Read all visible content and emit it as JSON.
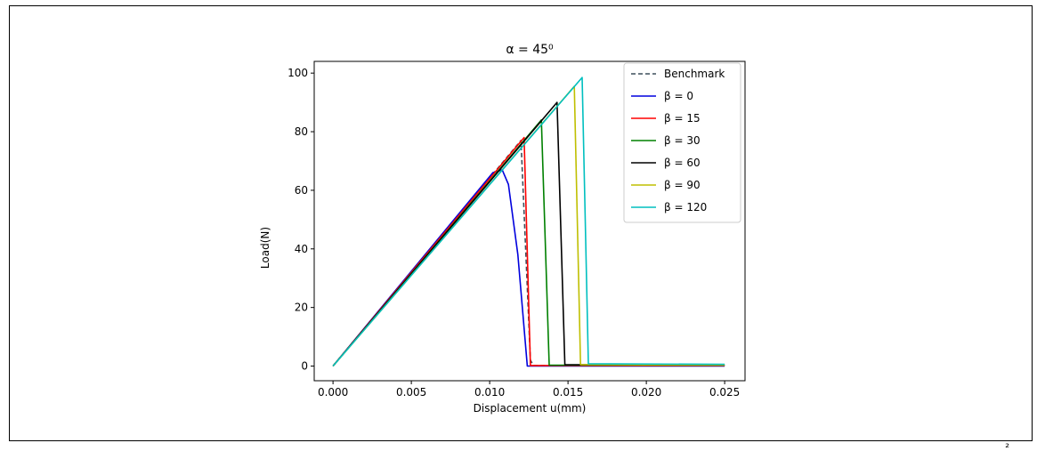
{
  "chart_data": {
    "type": "line",
    "title": "α = 45⁰",
    "xlabel": "Displacement u(mm)",
    "ylabel": "Load(N)",
    "xlim": [
      -0.0012,
      0.0263
    ],
    "ylim": [
      -5,
      104
    ],
    "x_ticks": [
      "0.000",
      "0.005",
      "0.010",
      "0.015",
      "0.020",
      "0.025"
    ],
    "y_ticks": [
      "0",
      "20",
      "40",
      "60",
      "80",
      "100"
    ],
    "grid": false,
    "legend_position": "top-right",
    "series": [
      {
        "name": "Benchmark",
        "color": "#3d4f5c",
        "dash": true,
        "x": [
          0,
          0.012,
          0.0126,
          0.0128,
          0.025
        ],
        "y": [
          0,
          77,
          2,
          0.2,
          0.2
        ]
      },
      {
        "name": "β = 0",
        "color": "#0000dd",
        "dash": false,
        "x": [
          0,
          0.0102,
          0.0108,
          0.0112,
          0.0118,
          0.0124,
          0.025
        ],
        "y": [
          0,
          66,
          67,
          62,
          38,
          0,
          0
        ]
      },
      {
        "name": "β = 15",
        "color": "#ff0000",
        "dash": false,
        "x": [
          0,
          0.0122,
          0.0126,
          0.025
        ],
        "y": [
          0,
          78,
          0.2,
          0.2
        ]
      },
      {
        "name": "β = 30",
        "color": "#008000",
        "dash": false,
        "x": [
          0,
          0.0133,
          0.0138,
          0.025
        ],
        "y": [
          0,
          84,
          0.3,
          0.3
        ]
      },
      {
        "name": "β = 60",
        "color": "#000000",
        "dash": false,
        "x": [
          0,
          0.0143,
          0.0148,
          0.025
        ],
        "y": [
          0,
          90,
          0.5,
          0.3
        ]
      },
      {
        "name": "β = 90",
        "color": "#bfbf00",
        "dash": false,
        "x": [
          0,
          0.0154,
          0.0158,
          0.025
        ],
        "y": [
          0,
          95.5,
          0.5,
          0.3
        ]
      },
      {
        "name": "β = 120",
        "color": "#00bfbf",
        "dash": false,
        "x": [
          0,
          0.0159,
          0.0163,
          0.025
        ],
        "y": [
          0,
          98.5,
          0.8,
          0.6
        ]
      }
    ]
  },
  "footer_text": "²"
}
